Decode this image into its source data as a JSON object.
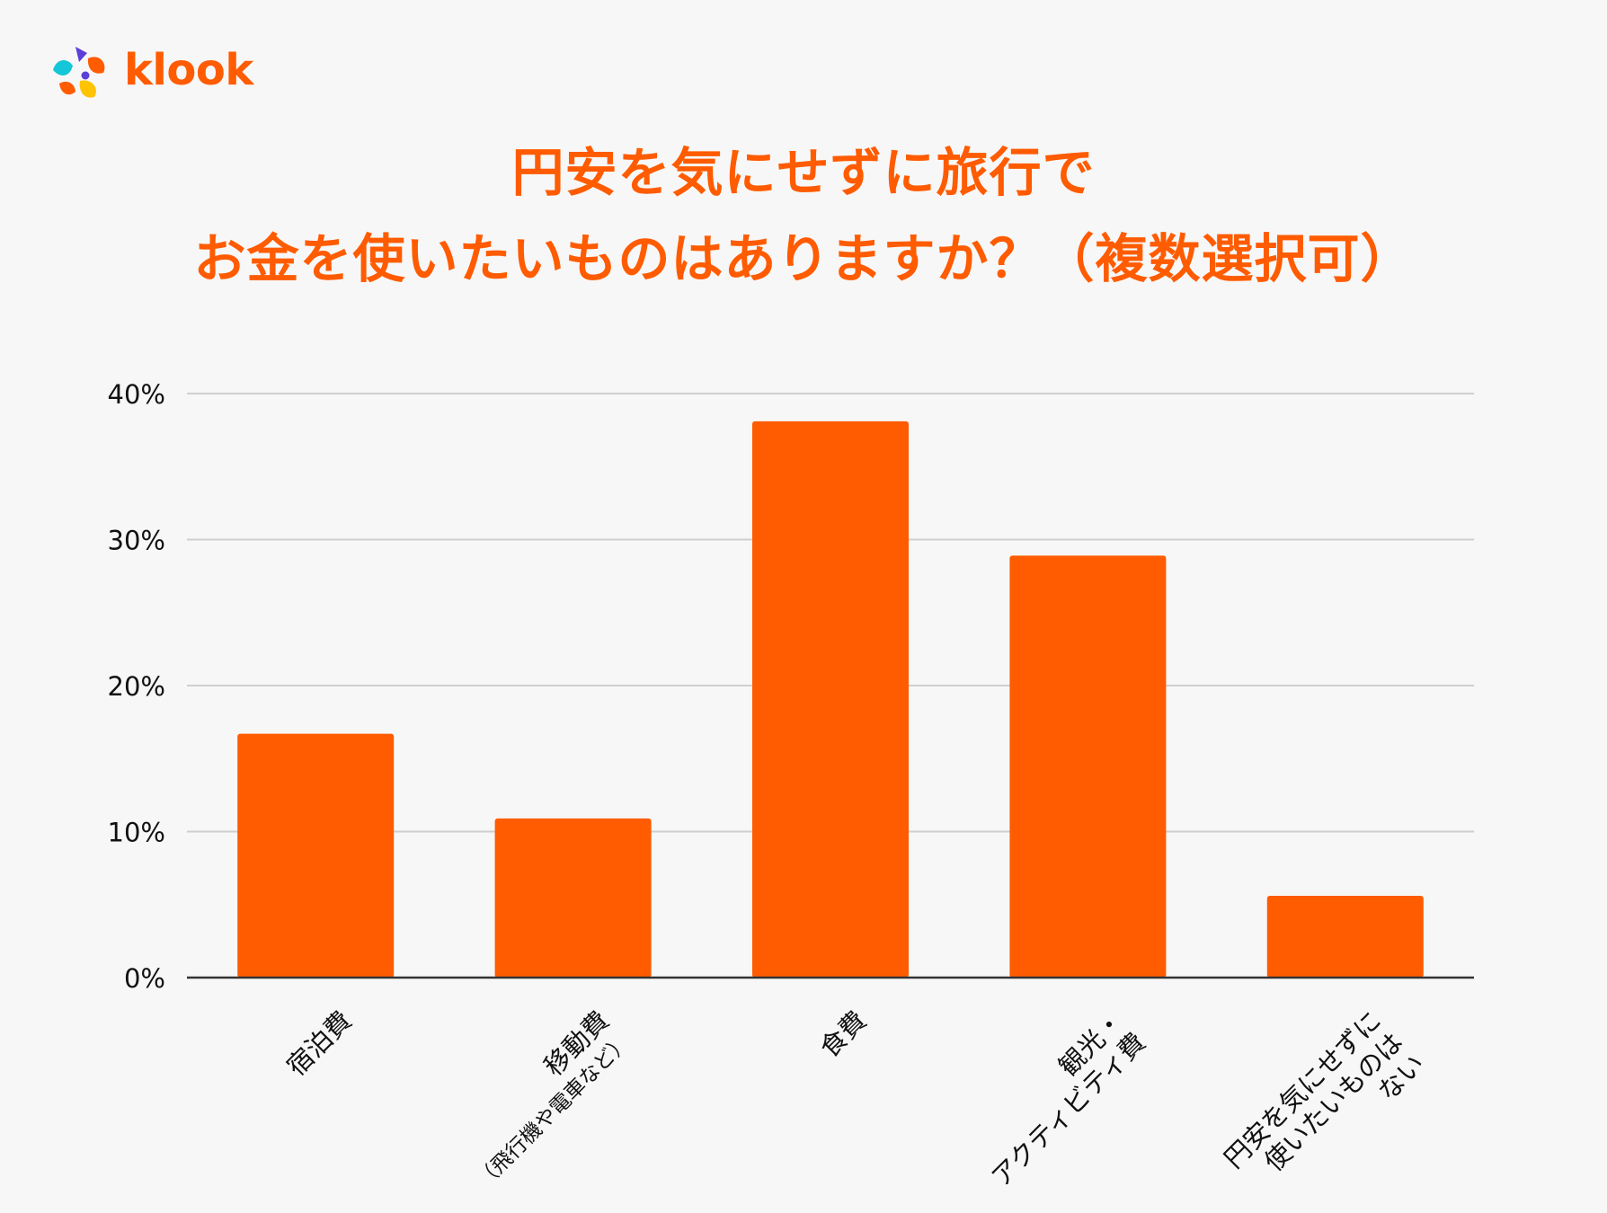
{
  "brand": {
    "name": "klook",
    "logo_icon": "klook-logo-icon",
    "accent": "#ff5b00",
    "logo_colors": [
      "#5b3fd8",
      "#13c6d8",
      "#ff5b00",
      "#ffc300"
    ]
  },
  "title": {
    "line1": "円安を気にせずに旅行で",
    "line2": "お金を使いたいものはありますか？（複数選択可）"
  },
  "colors": {
    "background": "#f7f7f7",
    "bar": "#ff5b00",
    "grid": "#cfcfcf",
    "axis": "#333333",
    "text": "#111111"
  },
  "chart_data": {
    "type": "bar",
    "categories": [
      [
        "宿泊費"
      ],
      [
        "移動費",
        "（飛行機や電車など）"
      ],
      [
        "食費"
      ],
      [
        "観光・",
        "アクティビティ費"
      ],
      [
        "円安を気にせずに",
        "使いたいものは",
        "ない"
      ]
    ],
    "values": [
      16.7,
      10.9,
      38.1,
      28.9,
      5.6
    ],
    "unit": "%",
    "yticks": [
      "0%",
      "10%",
      "20%",
      "30%",
      "40%"
    ],
    "ytick_values": [
      0,
      10,
      20,
      30,
      40
    ],
    "ylim": [
      0,
      40
    ],
    "grid": true,
    "legend": "none",
    "xlabel": "",
    "ylabel": ""
  }
}
